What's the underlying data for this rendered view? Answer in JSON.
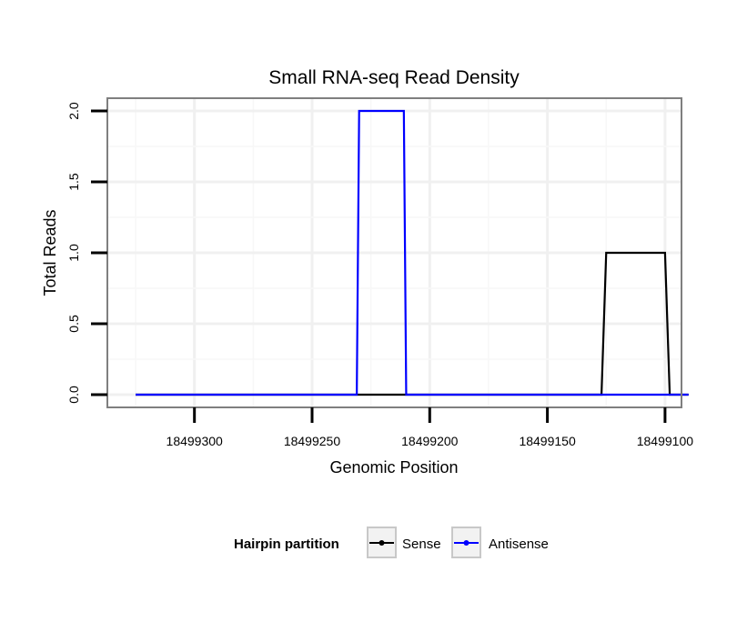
{
  "chart_data": {
    "type": "line",
    "title": "Small RNA-seq Read Density",
    "xlabel": "Genomic Position",
    "ylabel": "Total Reads",
    "x_reversed": true,
    "xlim": [
      18499337,
      18499093
    ],
    "ylim": [
      -0.09,
      2.09
    ],
    "x_ticks": [
      18499300,
      18499250,
      18499200,
      18499150,
      18499100
    ],
    "x_tick_labels": [
      "18499300",
      "18499250",
      "18499200",
      "18499150",
      "18499100"
    ],
    "y_ticks": [
      0,
      0.5,
      1,
      1.5,
      2
    ],
    "y_tick_labels": [
      "0.0",
      "0.5",
      "1.0",
      "1.5",
      "2.0"
    ],
    "grid": true,
    "legend": {
      "title": "Hairpin partition",
      "position": "bottom",
      "entries": [
        "Sense",
        "Antisense"
      ]
    },
    "series": [
      {
        "name": "Sense",
        "color": "#000000",
        "x": [
          18499325,
          18499127,
          18499125,
          18499100,
          18499098,
          18499090
        ],
        "y": [
          0,
          0,
          1,
          1,
          0,
          0
        ]
      },
      {
        "name": "Antisense",
        "color": "#0000ff",
        "x": [
          18499325,
          18499231,
          18499230,
          18499211,
          18499210,
          18499090
        ],
        "y": [
          0,
          0,
          2,
          2,
          0,
          0
        ]
      }
    ]
  }
}
